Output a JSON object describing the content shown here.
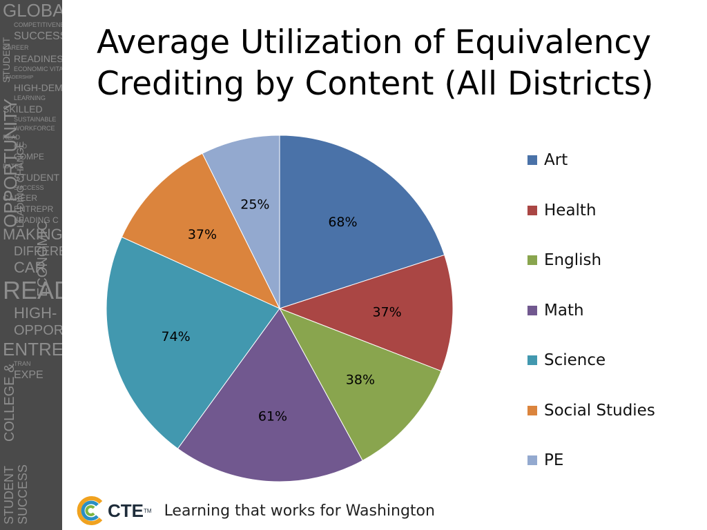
{
  "slide": {
    "title": "Average Utilization of Equivalency Crediting by Content (All Districts)"
  },
  "side_banner": {
    "words": [
      "GLOBAL",
      "COMPETITIVENESS",
      "SUCCESS",
      "CAREER",
      "READINESS",
      "ECONOMIC VITALITY",
      "LEADERSHIP",
      "HIGH-DEMAND",
      "LEARNING",
      "SKILLED",
      "SUSTAINABLE",
      "WORKFORCE",
      "READ",
      "GLO",
      "COMPE",
      "RATES",
      "STUDENT",
      "SUCCESS",
      "CAREER",
      "ENTREPR",
      "LEADING C",
      "MAKING",
      "DIFFERE",
      "CAR",
      "READ",
      "HIGH-",
      "OPPOR",
      "ENTRE",
      "TRAN",
      "EXPE"
    ],
    "vertical_words": [
      "STUDENT",
      "OPPORTUNITY",
      "LEADING CHANGE",
      "ECONOMIC",
      "COLLEGE &",
      "STUDENT",
      "SUCCESS"
    ]
  },
  "footer": {
    "logo_text": "CTE",
    "logo_tm": "TM",
    "tagline": "Learning that works for Washington"
  },
  "chart_data": {
    "type": "pie",
    "title": "Average Utilization of Equivalency Crediting by Content (All Districts)",
    "categories": [
      "Art",
      "Health",
      "English",
      "Math",
      "Science",
      "Social Studies",
      "PE"
    ],
    "values": [
      68,
      37,
      38,
      61,
      74,
      37,
      25
    ],
    "data_labels": [
      "68%",
      "37%",
      "38%",
      "61%",
      "74%",
      "37%",
      "25%"
    ],
    "colors": [
      "#4a72a8",
      "#aa4644",
      "#89a54e",
      "#71588f",
      "#4298af",
      "#db843d",
      "#93a9cf"
    ],
    "start": "12 o'clock",
    "direction": "clockwise",
    "legend_position": "right"
  }
}
